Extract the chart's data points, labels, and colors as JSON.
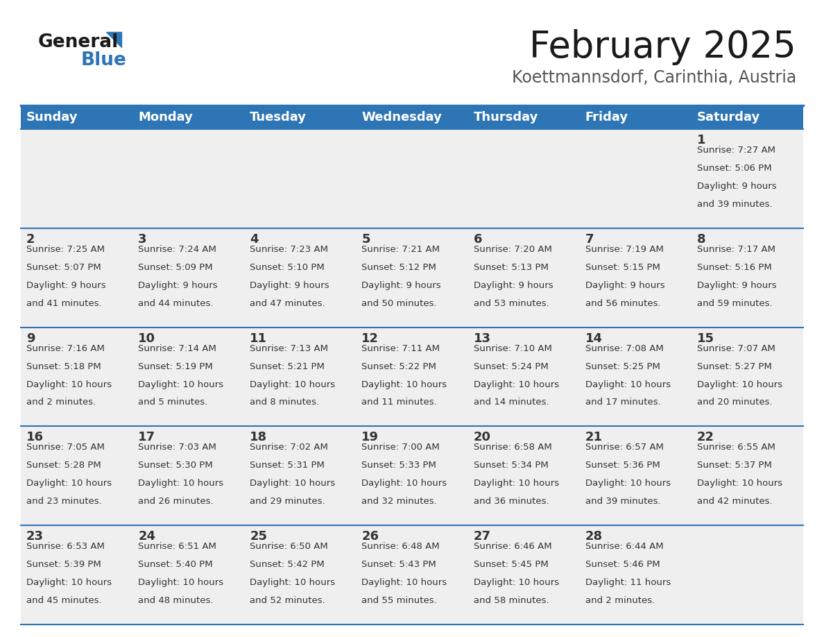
{
  "title": "February 2025",
  "subtitle": "Koettmannsdorf, Carinthia, Austria",
  "header_bg": "#2E75B6",
  "header_text": "#FFFFFF",
  "row_bg": "#EFEFEF",
  "separator_color": "#2E75B6",
  "text_color": "#333333",
  "day_headers": [
    "Sunday",
    "Monday",
    "Tuesday",
    "Wednesday",
    "Thursday",
    "Friday",
    "Saturday"
  ],
  "days": [
    {
      "day": 1,
      "col": 6,
      "row": 0,
      "sunrise": "7:27 AM",
      "sunset": "5:06 PM",
      "daylight_hours": 9,
      "daylight_minutes": 39
    },
    {
      "day": 2,
      "col": 0,
      "row": 1,
      "sunrise": "7:25 AM",
      "sunset": "5:07 PM",
      "daylight_hours": 9,
      "daylight_minutes": 41
    },
    {
      "day": 3,
      "col": 1,
      "row": 1,
      "sunrise": "7:24 AM",
      "sunset": "5:09 PM",
      "daylight_hours": 9,
      "daylight_minutes": 44
    },
    {
      "day": 4,
      "col": 2,
      "row": 1,
      "sunrise": "7:23 AM",
      "sunset": "5:10 PM",
      "daylight_hours": 9,
      "daylight_minutes": 47
    },
    {
      "day": 5,
      "col": 3,
      "row": 1,
      "sunrise": "7:21 AM",
      "sunset": "5:12 PM",
      "daylight_hours": 9,
      "daylight_minutes": 50
    },
    {
      "day": 6,
      "col": 4,
      "row": 1,
      "sunrise": "7:20 AM",
      "sunset": "5:13 PM",
      "daylight_hours": 9,
      "daylight_minutes": 53
    },
    {
      "day": 7,
      "col": 5,
      "row": 1,
      "sunrise": "7:19 AM",
      "sunset": "5:15 PM",
      "daylight_hours": 9,
      "daylight_minutes": 56
    },
    {
      "day": 8,
      "col": 6,
      "row": 1,
      "sunrise": "7:17 AM",
      "sunset": "5:16 PM",
      "daylight_hours": 9,
      "daylight_minutes": 59
    },
    {
      "day": 9,
      "col": 0,
      "row": 2,
      "sunrise": "7:16 AM",
      "sunset": "5:18 PM",
      "daylight_hours": 10,
      "daylight_minutes": 2
    },
    {
      "day": 10,
      "col": 1,
      "row": 2,
      "sunrise": "7:14 AM",
      "sunset": "5:19 PM",
      "daylight_hours": 10,
      "daylight_minutes": 5
    },
    {
      "day": 11,
      "col": 2,
      "row": 2,
      "sunrise": "7:13 AM",
      "sunset": "5:21 PM",
      "daylight_hours": 10,
      "daylight_minutes": 8
    },
    {
      "day": 12,
      "col": 3,
      "row": 2,
      "sunrise": "7:11 AM",
      "sunset": "5:22 PM",
      "daylight_hours": 10,
      "daylight_minutes": 11
    },
    {
      "day": 13,
      "col": 4,
      "row": 2,
      "sunrise": "7:10 AM",
      "sunset": "5:24 PM",
      "daylight_hours": 10,
      "daylight_minutes": 14
    },
    {
      "day": 14,
      "col": 5,
      "row": 2,
      "sunrise": "7:08 AM",
      "sunset": "5:25 PM",
      "daylight_hours": 10,
      "daylight_minutes": 17
    },
    {
      "day": 15,
      "col": 6,
      "row": 2,
      "sunrise": "7:07 AM",
      "sunset": "5:27 PM",
      "daylight_hours": 10,
      "daylight_minutes": 20
    },
    {
      "day": 16,
      "col": 0,
      "row": 3,
      "sunrise": "7:05 AM",
      "sunset": "5:28 PM",
      "daylight_hours": 10,
      "daylight_minutes": 23
    },
    {
      "day": 17,
      "col": 1,
      "row": 3,
      "sunrise": "7:03 AM",
      "sunset": "5:30 PM",
      "daylight_hours": 10,
      "daylight_minutes": 26
    },
    {
      "day": 18,
      "col": 2,
      "row": 3,
      "sunrise": "7:02 AM",
      "sunset": "5:31 PM",
      "daylight_hours": 10,
      "daylight_minutes": 29
    },
    {
      "day": 19,
      "col": 3,
      "row": 3,
      "sunrise": "7:00 AM",
      "sunset": "5:33 PM",
      "daylight_hours": 10,
      "daylight_minutes": 32
    },
    {
      "day": 20,
      "col": 4,
      "row": 3,
      "sunrise": "6:58 AM",
      "sunset": "5:34 PM",
      "daylight_hours": 10,
      "daylight_minutes": 36
    },
    {
      "day": 21,
      "col": 5,
      "row": 3,
      "sunrise": "6:57 AM",
      "sunset": "5:36 PM",
      "daylight_hours": 10,
      "daylight_minutes": 39
    },
    {
      "day": 22,
      "col": 6,
      "row": 3,
      "sunrise": "6:55 AM",
      "sunset": "5:37 PM",
      "daylight_hours": 10,
      "daylight_minutes": 42
    },
    {
      "day": 23,
      "col": 0,
      "row": 4,
      "sunrise": "6:53 AM",
      "sunset": "5:39 PM",
      "daylight_hours": 10,
      "daylight_minutes": 45
    },
    {
      "day": 24,
      "col": 1,
      "row": 4,
      "sunrise": "6:51 AM",
      "sunset": "5:40 PM",
      "daylight_hours": 10,
      "daylight_minutes": 48
    },
    {
      "day": 25,
      "col": 2,
      "row": 4,
      "sunrise": "6:50 AM",
      "sunset": "5:42 PM",
      "daylight_hours": 10,
      "daylight_minutes": 52
    },
    {
      "day": 26,
      "col": 3,
      "row": 4,
      "sunrise": "6:48 AM",
      "sunset": "5:43 PM",
      "daylight_hours": 10,
      "daylight_minutes": 55
    },
    {
      "day": 27,
      "col": 4,
      "row": 4,
      "sunrise": "6:46 AM",
      "sunset": "5:45 PM",
      "daylight_hours": 10,
      "daylight_minutes": 58
    },
    {
      "day": 28,
      "col": 5,
      "row": 4,
      "sunrise": "6:44 AM",
      "sunset": "5:46 PM",
      "daylight_hours": 11,
      "daylight_minutes": 2
    }
  ],
  "logo_color_general": "#1a1a1a",
  "logo_color_blue": "#2E75B6",
  "logo_triangle_color": "#2E75B6",
  "title_fontsize": 38,
  "subtitle_fontsize": 17,
  "header_fontsize": 13,
  "day_num_fontsize": 13,
  "cell_text_fontsize": 9.5
}
